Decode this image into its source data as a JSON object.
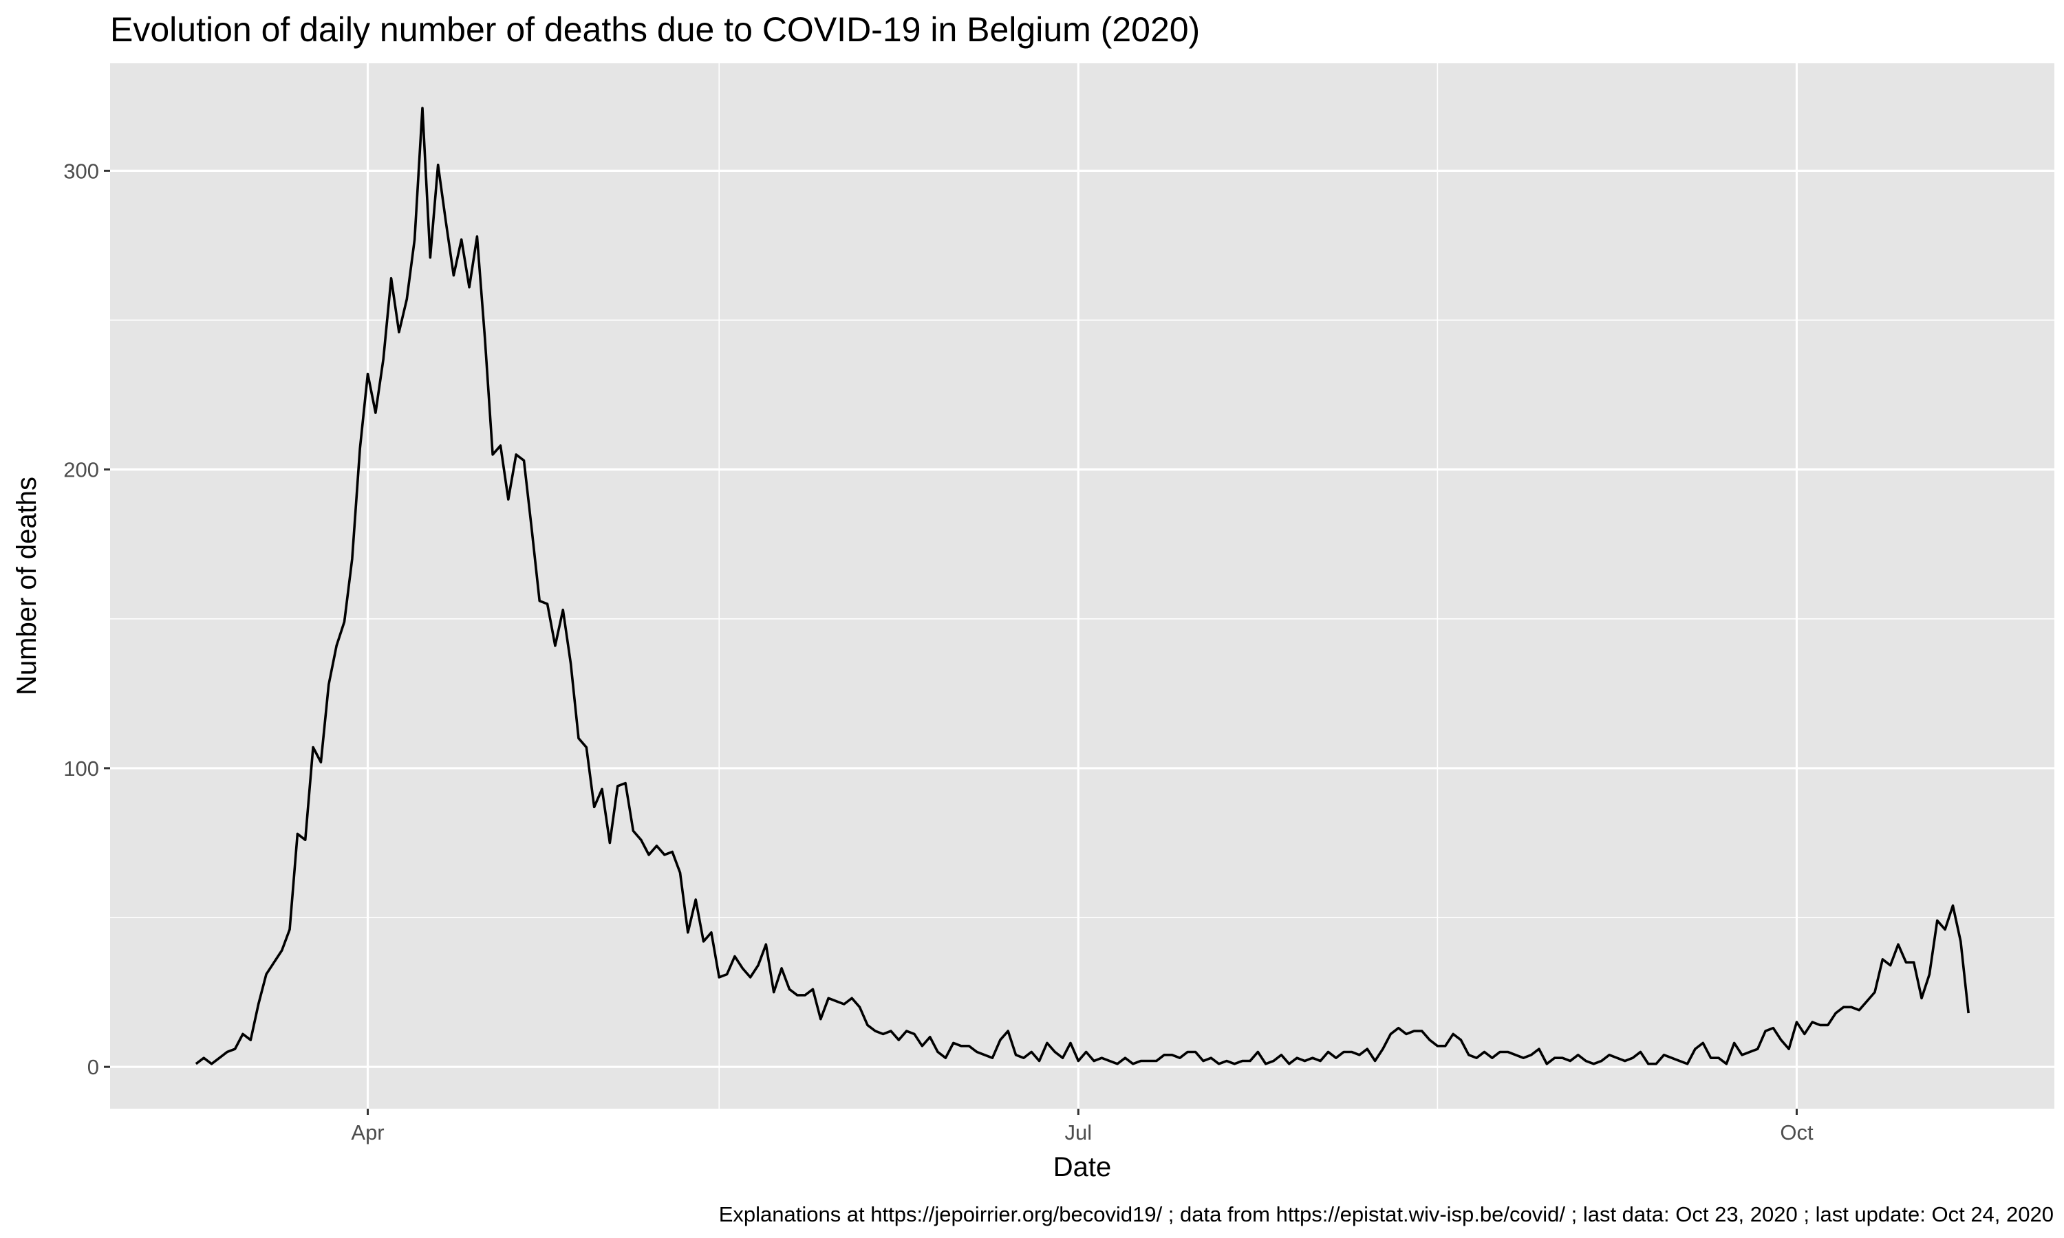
{
  "chart_data": {
    "type": "line",
    "title": "Evolution of daily number of deaths due to COVID-19 in Belgium (2020)",
    "xlabel": "Date",
    "ylabel": "Number of deaths",
    "caption": "Explanations at https://jepoirrier.org/becovid19/ ; data from https://epistat.wiv-isp.be/covid/ ; last data: Oct 23, 2020  ; last update: Oct 24, 2020",
    "x_start": "2020-03-10",
    "x_end": "2020-10-23",
    "xlim": [
      "2020-02-28",
      "2020-11-03"
    ],
    "ylim": [
      -14,
      336
    ],
    "y_ticks": [
      0,
      100,
      200,
      300
    ],
    "x_ticks": [
      {
        "date": "2020-04-01",
        "label": "Apr"
      },
      {
        "date": "2020-07-01",
        "label": "Jul"
      },
      {
        "date": "2020-10-01",
        "label": "Oct"
      }
    ],
    "x_minor_ticks": [
      "2020-05-16",
      "2020-08-16"
    ],
    "grid": true,
    "legend": "none",
    "colors": {
      "panel": "#e5e5e5",
      "grid": "#ffffff",
      "line": "#000000",
      "tick_text": "#4d4d4d"
    },
    "series": [
      {
        "values": [
          1,
          3,
          1,
          3,
          5,
          6,
          11,
          9,
          21,
          31,
          35,
          39,
          46,
          78,
          76,
          107,
          102,
          128,
          141,
          149,
          170,
          207,
          232,
          219,
          237,
          264,
          246,
          257,
          277,
          321,
          271,
          302,
          283,
          265,
          277,
          261,
          278,
          244,
          205,
          208,
          190,
          205,
          203,
          180,
          156,
          155,
          141,
          153,
          135,
          110,
          107,
          87,
          93,
          75,
          94,
          95,
          79,
          76,
          71,
          74,
          71,
          72,
          65,
          45,
          56,
          42,
          45,
          30,
          31,
          37,
          33,
          30,
          34,
          41,
          25,
          33,
          26,
          24,
          24,
          26,
          16,
          23,
          22,
          21,
          23,
          20,
          14,
          12,
          11,
          12,
          9,
          12,
          11,
          7,
          10,
          5,
          3,
          8,
          7,
          7,
          5,
          4,
          3,
          9,
          12,
          4,
          3,
          5,
          2,
          8,
          5,
          3,
          8,
          2,
          5,
          2,
          3,
          2,
          1,
          3,
          1,
          2,
          2,
          2,
          4,
          4,
          3,
          5,
          5,
          2,
          3,
          1,
          2,
          1,
          2,
          2,
          5,
          1,
          2,
          4,
          1,
          3,
          2,
          3,
          2,
          5,
          3,
          5,
          5,
          4,
          6,
          2,
          6,
          11,
          13,
          11,
          12,
          12,
          9,
          7,
          7,
          11,
          9,
          4,
          3,
          5,
          3,
          5,
          5,
          4,
          3,
          4,
          6,
          1,
          3,
          3,
          2,
          4,
          2,
          1,
          2,
          4,
          3,
          2,
          3,
          5,
          1,
          1,
          4,
          3,
          2,
          1,
          6,
          8,
          3,
          3,
          1,
          8,
          4,
          5,
          6,
          12,
          13,
          9,
          6,
          15,
          11,
          15,
          14,
          14,
          18,
          20,
          20,
          19,
          22,
          25,
          36,
          34,
          41,
          35,
          35,
          23,
          31,
          49,
          46,
          54,
          42,
          18
        ]
      }
    ]
  }
}
